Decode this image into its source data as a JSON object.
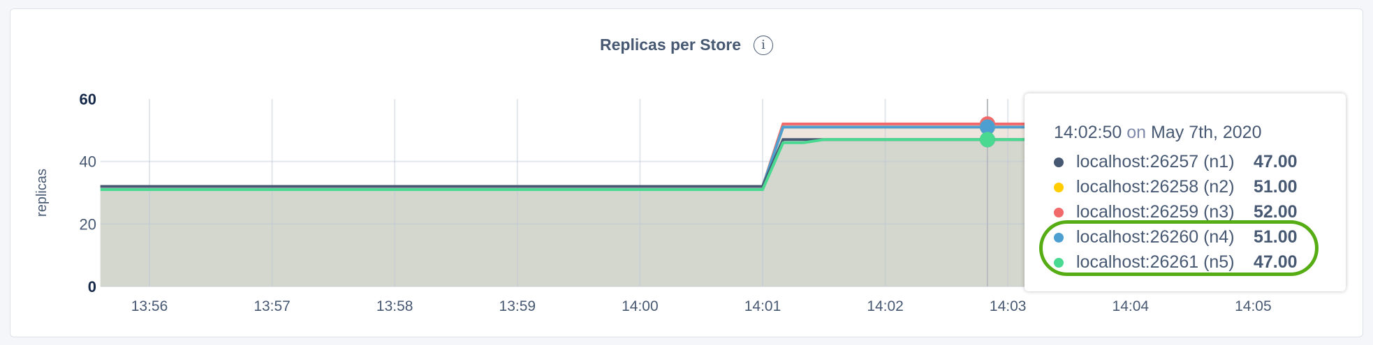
{
  "title": "Replicas per Store",
  "info_icon": "info-circle-icon",
  "chart_data": {
    "type": "area",
    "title": "Replicas per Store",
    "xlabel": "",
    "ylabel": "replicas",
    "ylim": [
      0,
      60
    ],
    "yticks": [
      "0",
      "20",
      "40",
      "60"
    ],
    "xticks": [
      "13:56",
      "13:57",
      "13:58",
      "13:59",
      "14:00",
      "14:01",
      "14:02",
      "14:03",
      "14:04",
      "14:05"
    ],
    "xlim": [
      "13:55:36",
      "14:05:40"
    ],
    "grid": true,
    "x": [
      "13:55:36",
      "14:01:00",
      "14:01:10",
      "14:01:20",
      "14:01:30",
      "14:05:40"
    ],
    "series": [
      {
        "name": "localhost:26257 (n1)",
        "color": "#475872",
        "values": [
          32,
          32,
          47,
          47,
          47,
          47
        ]
      },
      {
        "name": "localhost:26258 (n2)",
        "color": "#ffcd02",
        "values": [
          32,
          32,
          51,
          51,
          51,
          51
        ]
      },
      {
        "name": "localhost:26259 (n3)",
        "color": "#f16969",
        "values": [
          32,
          32,
          52,
          52,
          52,
          52
        ]
      },
      {
        "name": "localhost:26260 (n4)",
        "color": "#4e9fd1",
        "values": [
          32,
          32,
          51,
          51,
          51,
          51
        ]
      },
      {
        "name": "localhost:26261 (n5)",
        "color": "#49d990",
        "values": [
          31,
          31,
          46,
          46,
          47,
          47
        ]
      }
    ],
    "hover": "14:02:50"
  },
  "tooltip": {
    "time": "14:02:50",
    "on": "on",
    "date": "May 7th, 2020",
    "rows": [
      {
        "label": "localhost:26257 (n1)",
        "value": "47.00",
        "color": "#475872"
      },
      {
        "label": "localhost:26258 (n2)",
        "value": "51.00",
        "color": "#ffcd02"
      },
      {
        "label": "localhost:26259 (n3)",
        "value": "52.00",
        "color": "#f16969"
      },
      {
        "label": "localhost:26260 (n4)",
        "value": "51.00",
        "color": "#4e9fd1"
      },
      {
        "label": "localhost:26261 (n5)",
        "value": "47.00",
        "color": "#49d990"
      }
    ]
  },
  "annotation_color": "#55ad13"
}
